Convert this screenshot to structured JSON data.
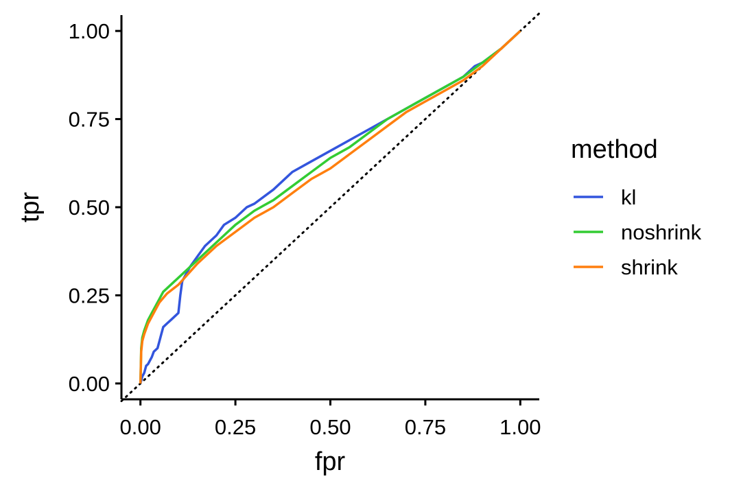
{
  "chart_data": {
    "type": "line",
    "xlabel": "fpr",
    "ylabel": "tpr",
    "xlim": [
      -0.05,
      1.05
    ],
    "ylim": [
      -0.045,
      1.045
    ],
    "x_ticks": [
      "0.00",
      "0.25",
      "0.50",
      "0.75",
      "1.00"
    ],
    "y_ticks": [
      "0.00",
      "0.25",
      "0.50",
      "0.75",
      "1.00"
    ],
    "grid": false,
    "reference_line": {
      "style": "dotted",
      "color": "#000000",
      "from": [
        -0.05,
        -0.05
      ],
      "to": [
        1.05,
        1.05
      ]
    },
    "legend": {
      "title": "method",
      "position": "right"
    },
    "series": [
      {
        "name": "kl",
        "color": "#3355DD",
        "points": [
          [
            0.0,
            0.0
          ],
          [
            0.005,
            0.02
          ],
          [
            0.01,
            0.03
          ],
          [
            0.015,
            0.05
          ],
          [
            0.02,
            0.055
          ],
          [
            0.025,
            0.065
          ],
          [
            0.03,
            0.075
          ],
          [
            0.035,
            0.09
          ],
          [
            0.045,
            0.1
          ],
          [
            0.05,
            0.12
          ],
          [
            0.055,
            0.14
          ],
          [
            0.06,
            0.16
          ],
          [
            0.07,
            0.17
          ],
          [
            0.08,
            0.18
          ],
          [
            0.09,
            0.19
          ],
          [
            0.1,
            0.2
          ],
          [
            0.105,
            0.25
          ],
          [
            0.11,
            0.29
          ],
          [
            0.12,
            0.31
          ],
          [
            0.13,
            0.33
          ],
          [
            0.15,
            0.36
          ],
          [
            0.17,
            0.39
          ],
          [
            0.2,
            0.42
          ],
          [
            0.22,
            0.45
          ],
          [
            0.25,
            0.47
          ],
          [
            0.28,
            0.5
          ],
          [
            0.3,
            0.51
          ],
          [
            0.35,
            0.55
          ],
          [
            0.4,
            0.6
          ],
          [
            0.45,
            0.63
          ],
          [
            0.5,
            0.66
          ],
          [
            0.55,
            0.69
          ],
          [
            0.6,
            0.72
          ],
          [
            0.65,
            0.75
          ],
          [
            0.7,
            0.78
          ],
          [
            0.75,
            0.81
          ],
          [
            0.8,
            0.84
          ],
          [
            0.85,
            0.87
          ],
          [
            0.88,
            0.9
          ],
          [
            0.9,
            0.91
          ],
          [
            0.95,
            0.95
          ],
          [
            1.0,
            1.0
          ]
        ]
      },
      {
        "name": "noshrink",
        "color": "#33CC33",
        "points": [
          [
            0.0,
            0.0
          ],
          [
            0.002,
            0.1
          ],
          [
            0.005,
            0.13
          ],
          [
            0.01,
            0.15
          ],
          [
            0.02,
            0.18
          ],
          [
            0.03,
            0.2
          ],
          [
            0.04,
            0.22
          ],
          [
            0.05,
            0.24
          ],
          [
            0.06,
            0.26
          ],
          [
            0.07,
            0.27
          ],
          [
            0.1,
            0.3
          ],
          [
            0.15,
            0.35
          ],
          [
            0.2,
            0.4
          ],
          [
            0.25,
            0.45
          ],
          [
            0.3,
            0.49
          ],
          [
            0.35,
            0.52
          ],
          [
            0.4,
            0.56
          ],
          [
            0.45,
            0.6
          ],
          [
            0.5,
            0.64
          ],
          [
            0.55,
            0.67
          ],
          [
            0.6,
            0.71
          ],
          [
            0.65,
            0.75
          ],
          [
            0.7,
            0.78
          ],
          [
            0.75,
            0.81
          ],
          [
            0.8,
            0.84
          ],
          [
            0.85,
            0.87
          ],
          [
            0.9,
            0.91
          ],
          [
            0.95,
            0.95
          ],
          [
            1.0,
            1.0
          ]
        ]
      },
      {
        "name": "shrink",
        "color": "#FF7F0E",
        "points": [
          [
            0.0,
            0.0
          ],
          [
            0.002,
            0.09
          ],
          [
            0.005,
            0.12
          ],
          [
            0.01,
            0.14
          ],
          [
            0.02,
            0.17
          ],
          [
            0.03,
            0.19
          ],
          [
            0.04,
            0.21
          ],
          [
            0.05,
            0.23
          ],
          [
            0.07,
            0.255
          ],
          [
            0.1,
            0.28
          ],
          [
            0.15,
            0.34
          ],
          [
            0.2,
            0.39
          ],
          [
            0.25,
            0.43
          ],
          [
            0.3,
            0.47
          ],
          [
            0.35,
            0.5
          ],
          [
            0.4,
            0.54
          ],
          [
            0.45,
            0.58
          ],
          [
            0.5,
            0.61
          ],
          [
            0.55,
            0.65
          ],
          [
            0.6,
            0.69
          ],
          [
            0.65,
            0.73
          ],
          [
            0.7,
            0.77
          ],
          [
            0.75,
            0.8
          ],
          [
            0.8,
            0.83
          ],
          [
            0.85,
            0.86
          ],
          [
            0.9,
            0.9
          ],
          [
            0.95,
            0.95
          ],
          [
            1.0,
            1.0
          ]
        ]
      }
    ]
  }
}
